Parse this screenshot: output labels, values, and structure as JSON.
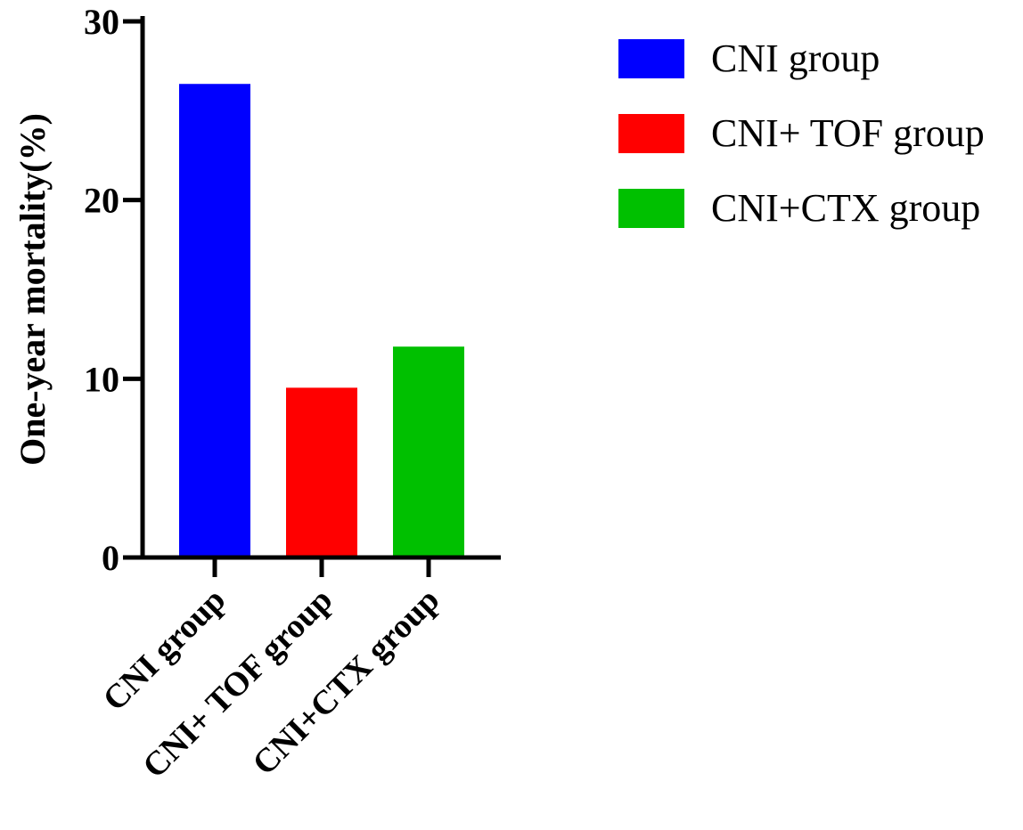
{
  "chart_data": {
    "type": "bar",
    "title": "",
    "xlabel": "",
    "ylabel": "One-year mortality(%)",
    "ylim": [
      0,
      30
    ],
    "yticks": [
      0,
      10,
      20,
      30
    ],
    "categories": [
      "CNI group",
      "CNI+ TOF group",
      "CNI+CTX group"
    ],
    "values": [
      26.5,
      9.5,
      11.8
    ],
    "colors": [
      "#0000ff",
      "#ff0000",
      "#00c000"
    ],
    "grid": false,
    "legend": {
      "position": "top-right",
      "entries": [
        "CNI group",
        "CNI+ TOF group",
        "CNI+CTX group"
      ]
    }
  }
}
